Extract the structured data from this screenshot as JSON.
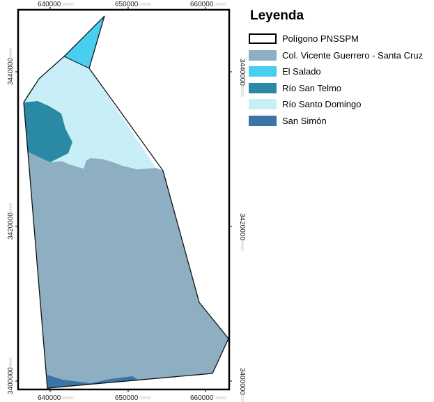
{
  "map": {
    "x_ticks": [
      "640000",
      "650000",
      "660000"
    ],
    "y_ticks": [
      "3440000",
      "3420000",
      "3400000"
    ],
    "tick_suffix": "000000"
  },
  "legend": {
    "title": "Leyenda",
    "items": [
      {
        "label": "Polígono PNSSPM",
        "fill": "#ffffff",
        "stroke": "#000000"
      },
      {
        "label": "Col. Vicente Guerrero - Santa Cruz",
        "fill": "#8eaec2"
      },
      {
        "label": "El Salado",
        "fill": "#48cfef"
      },
      {
        "label": "Río San Telmo",
        "fill": "#2a8aa6"
      },
      {
        "label": "Río Santo Domingo",
        "fill": "#c8eef7"
      },
      {
        "label": "San Simón",
        "fill": "#3b75a8"
      }
    ]
  }
}
